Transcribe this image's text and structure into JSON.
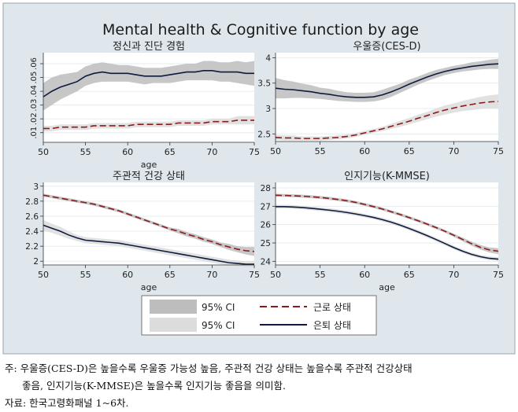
{
  "figure": {
    "title": "Mental health & Cognitive function by age",
    "colors": {
      "background": "#dfe7ec",
      "plot_bg": "#ffffff",
      "ci_dark": "#bdbdbd",
      "ci_light": "#dcdcdc",
      "working": "#8b1a1a",
      "retired": "#0d1b3e"
    }
  },
  "legend": {
    "ci_dark_label": "95% CI",
    "ci_light_label": "95% CI",
    "working_label": "근로 상태",
    "retired_label": "은퇴 상태"
  },
  "notes": {
    "line1": "주: 우울증(CES-D)은 높을수록 우울증 가능성 높음, 주관적 건강 상태는 높을수록 주관적 건강상태",
    "line2": "좋음, 인지기능(K-MMSE)은 높을수록 인지기능 좋음을 의미함.",
    "line3": "자료: 한국고령화패널 1~6차."
  },
  "chart_data": [
    {
      "type": "line",
      "title": "정신과 진단 경험",
      "xlabel": "age",
      "xlim": [
        50,
        75
      ],
      "ylim": [
        0.003,
        0.068
      ],
      "xticks": [
        "50",
        "55",
        "60",
        "65",
        "70",
        "75"
      ],
      "yticks": [
        0.01,
        0.02,
        0.03,
        0.04,
        0.05,
        0.06
      ],
      "ytick_labels": [
        ".01",
        ".02",
        ".03",
        ".04",
        ".05",
        ".06"
      ],
      "x": [
        50,
        51,
        52,
        53,
        54,
        55,
        56,
        57,
        58,
        59,
        60,
        61,
        62,
        63,
        64,
        65,
        66,
        67,
        68,
        69,
        70,
        71,
        72,
        73,
        74,
        75
      ],
      "series": [
        {
          "name": "은퇴 상태",
          "values": [
            0.036,
            0.04,
            0.043,
            0.045,
            0.047,
            0.051,
            0.053,
            0.054,
            0.053,
            0.053,
            0.053,
            0.052,
            0.051,
            0.051,
            0.051,
            0.052,
            0.053,
            0.054,
            0.054,
            0.055,
            0.055,
            0.054,
            0.054,
            0.054,
            0.053,
            0.053
          ],
          "ci_low": [
            0.026,
            0.03,
            0.034,
            0.037,
            0.04,
            0.044,
            0.046,
            0.047,
            0.047,
            0.047,
            0.047,
            0.046,
            0.045,
            0.046,
            0.046,
            0.046,
            0.047,
            0.048,
            0.048,
            0.048,
            0.048,
            0.047,
            0.047,
            0.046,
            0.045,
            0.044
          ],
          "ci_high": [
            0.046,
            0.05,
            0.052,
            0.053,
            0.054,
            0.058,
            0.06,
            0.061,
            0.06,
            0.059,
            0.059,
            0.058,
            0.057,
            0.057,
            0.057,
            0.058,
            0.059,
            0.06,
            0.06,
            0.062,
            0.062,
            0.061,
            0.061,
            0.062,
            0.061,
            0.062
          ]
        },
        {
          "name": "근로 상태",
          "values": [
            0.013,
            0.013,
            0.014,
            0.014,
            0.014,
            0.014,
            0.015,
            0.015,
            0.015,
            0.015,
            0.015,
            0.016,
            0.016,
            0.016,
            0.016,
            0.016,
            0.017,
            0.017,
            0.017,
            0.017,
            0.018,
            0.018,
            0.018,
            0.019,
            0.019,
            0.019
          ],
          "ci_low": [
            0.011,
            0.011,
            0.012,
            0.012,
            0.012,
            0.012,
            0.013,
            0.013,
            0.013,
            0.013,
            0.013,
            0.014,
            0.014,
            0.014,
            0.014,
            0.014,
            0.015,
            0.015,
            0.015,
            0.015,
            0.016,
            0.016,
            0.016,
            0.016,
            0.016,
            0.016
          ],
          "ci_high": [
            0.015,
            0.015,
            0.016,
            0.016,
            0.016,
            0.016,
            0.017,
            0.017,
            0.017,
            0.017,
            0.017,
            0.018,
            0.018,
            0.018,
            0.018,
            0.018,
            0.019,
            0.019,
            0.019,
            0.019,
            0.02,
            0.02,
            0.02,
            0.022,
            0.022,
            0.022
          ]
        }
      ]
    },
    {
      "type": "line",
      "title": "우울증(CES-D)",
      "xlabel": "",
      "xlim": [
        50,
        75
      ],
      "ylim": [
        2.35,
        4.1
      ],
      "xticks": [
        "50",
        "55",
        "60",
        "65",
        "70",
        "75"
      ],
      "yticks": [
        2.5,
        3,
        3.5,
        4
      ],
      "ytick_labels": [
        "2.5",
        "3",
        "3.5",
        "4"
      ],
      "x": [
        50,
        51,
        52,
        53,
        54,
        55,
        56,
        57,
        58,
        59,
        60,
        61,
        62,
        63,
        64,
        65,
        66,
        67,
        68,
        69,
        70,
        71,
        72,
        73,
        74,
        75
      ],
      "series": [
        {
          "name": "은퇴 상태",
          "values": [
            3.4,
            3.38,
            3.37,
            3.35,
            3.33,
            3.3,
            3.28,
            3.25,
            3.23,
            3.22,
            3.22,
            3.23,
            3.27,
            3.33,
            3.4,
            3.48,
            3.55,
            3.62,
            3.68,
            3.73,
            3.77,
            3.8,
            3.83,
            3.85,
            3.87,
            3.88
          ],
          "ci_low": [
            3.2,
            3.2,
            3.21,
            3.21,
            3.2,
            3.19,
            3.17,
            3.15,
            3.14,
            3.13,
            3.13,
            3.14,
            3.17,
            3.23,
            3.31,
            3.39,
            3.47,
            3.54,
            3.6,
            3.66,
            3.7,
            3.73,
            3.75,
            3.77,
            3.78,
            3.78
          ],
          "ci_high": [
            3.6,
            3.56,
            3.53,
            3.49,
            3.46,
            3.41,
            3.39,
            3.35,
            3.32,
            3.31,
            3.31,
            3.32,
            3.37,
            3.43,
            3.49,
            3.57,
            3.63,
            3.7,
            3.76,
            3.8,
            3.84,
            3.87,
            3.91,
            3.93,
            3.96,
            3.98
          ]
        },
        {
          "name": "근로 상태",
          "values": [
            2.43,
            2.42,
            2.42,
            2.41,
            2.41,
            2.41,
            2.42,
            2.43,
            2.45,
            2.48,
            2.52,
            2.56,
            2.6,
            2.65,
            2.7,
            2.75,
            2.81,
            2.86,
            2.92,
            2.97,
            3.01,
            3.05,
            3.08,
            3.11,
            3.13,
            3.14
          ],
          "ci_low": [
            2.38,
            2.37,
            2.37,
            2.37,
            2.37,
            2.37,
            2.38,
            2.39,
            2.41,
            2.44,
            2.48,
            2.52,
            2.56,
            2.6,
            2.64,
            2.69,
            2.74,
            2.79,
            2.84,
            2.88,
            2.92,
            2.95,
            2.97,
            2.99,
            3.0,
            3.0
          ],
          "ci_high": [
            2.48,
            2.47,
            2.47,
            2.45,
            2.45,
            2.45,
            2.46,
            2.47,
            2.49,
            2.52,
            2.56,
            2.6,
            2.64,
            2.7,
            2.76,
            2.81,
            2.88,
            2.93,
            3.0,
            3.06,
            3.1,
            3.15,
            3.19,
            3.23,
            3.26,
            3.28
          ]
        }
      ]
    },
    {
      "type": "line",
      "title": "주관적 건강 상태",
      "xlabel": "age",
      "xlim": [
        50,
        75
      ],
      "ylim": [
        1.95,
        3.05
      ],
      "xticks": [
        "50",
        "55",
        "60",
        "65",
        "70",
        "75"
      ],
      "yticks": [
        2,
        2.2,
        2.4,
        2.6,
        2.8,
        3
      ],
      "ytick_labels": [
        "2",
        "2.2",
        "2.4",
        "2.6",
        "2.8",
        "3"
      ],
      "x": [
        50,
        51,
        52,
        53,
        54,
        55,
        56,
        57,
        58,
        59,
        60,
        61,
        62,
        63,
        64,
        65,
        66,
        67,
        68,
        69,
        70,
        71,
        72,
        73,
        74,
        75
      ],
      "series": [
        {
          "name": "근로 상태",
          "values": [
            2.88,
            2.86,
            2.84,
            2.82,
            2.8,
            2.78,
            2.76,
            2.73,
            2.7,
            2.67,
            2.63,
            2.59,
            2.55,
            2.51,
            2.47,
            2.43,
            2.4,
            2.36,
            2.33,
            2.29,
            2.26,
            2.22,
            2.19,
            2.16,
            2.14,
            2.13
          ],
          "ci_low": [
            2.86,
            2.84,
            2.82,
            2.8,
            2.78,
            2.76,
            2.74,
            2.71,
            2.68,
            2.65,
            2.61,
            2.57,
            2.53,
            2.49,
            2.45,
            2.41,
            2.37,
            2.33,
            2.3,
            2.26,
            2.23,
            2.19,
            2.15,
            2.12,
            2.09,
            2.07
          ],
          "ci_high": [
            2.9,
            2.88,
            2.86,
            2.84,
            2.82,
            2.8,
            2.78,
            2.75,
            2.72,
            2.69,
            2.65,
            2.61,
            2.57,
            2.53,
            2.49,
            2.45,
            2.43,
            2.39,
            2.36,
            2.32,
            2.29,
            2.25,
            2.23,
            2.2,
            2.19,
            2.19
          ]
        },
        {
          "name": "은퇴 상태",
          "values": [
            2.48,
            2.44,
            2.4,
            2.35,
            2.31,
            2.28,
            2.27,
            2.26,
            2.25,
            2.24,
            2.22,
            2.2,
            2.18,
            2.16,
            2.14,
            2.12,
            2.1,
            2.08,
            2.06,
            2.04,
            2.02,
            2.0,
            1.98,
            1.97,
            1.96,
            1.96
          ],
          "ci_low": [
            2.41,
            2.38,
            2.34,
            2.3,
            2.27,
            2.24,
            2.23,
            2.22,
            2.21,
            2.2,
            2.18,
            2.16,
            2.14,
            2.12,
            2.1,
            2.08,
            2.06,
            2.04,
            2.02,
            2.0,
            1.98,
            1.96,
            1.94,
            1.93,
            1.92,
            1.92
          ],
          "ci_high": [
            2.55,
            2.5,
            2.46,
            2.4,
            2.35,
            2.32,
            2.31,
            2.3,
            2.29,
            2.28,
            2.26,
            2.24,
            2.22,
            2.2,
            2.18,
            2.16,
            2.14,
            2.12,
            2.1,
            2.08,
            2.06,
            2.04,
            2.02,
            2.01,
            2.0,
            2.0
          ]
        }
      ]
    },
    {
      "type": "line",
      "title": "인지기능(K-MMSE)",
      "xlabel": "age",
      "xlim": [
        50,
        75
      ],
      "ylim": [
        23.8,
        28.3
      ],
      "xticks": [
        "50",
        "55",
        "60",
        "65",
        "70",
        "75"
      ],
      "yticks": [
        24,
        25,
        26,
        27,
        28
      ],
      "ytick_labels": [
        "24",
        "25",
        "26",
        "27",
        "28"
      ],
      "x": [
        50,
        51,
        52,
        53,
        54,
        55,
        56,
        57,
        58,
        59,
        60,
        61,
        62,
        63,
        64,
        65,
        66,
        67,
        68,
        69,
        70,
        71,
        72,
        73,
        74,
        75
      ],
      "series": [
        {
          "name": "근로 상태",
          "values": [
            27.6,
            27.59,
            27.57,
            27.55,
            27.52,
            27.48,
            27.43,
            27.37,
            27.3,
            27.21,
            27.1,
            26.98,
            26.85,
            26.7,
            26.55,
            26.38,
            26.21,
            26.03,
            25.84,
            25.64,
            25.42,
            25.19,
            24.96,
            24.76,
            24.62,
            24.55
          ],
          "ci_low": [
            27.52,
            27.51,
            27.49,
            27.47,
            27.44,
            27.4,
            27.35,
            27.29,
            27.22,
            27.13,
            27.02,
            26.9,
            26.77,
            26.62,
            26.47,
            26.3,
            26.13,
            25.95,
            25.76,
            25.56,
            25.33,
            25.09,
            24.85,
            24.64,
            24.48,
            24.39
          ],
          "ci_high": [
            27.68,
            27.67,
            27.65,
            27.63,
            27.6,
            27.56,
            27.51,
            27.45,
            27.38,
            27.29,
            27.18,
            27.06,
            26.93,
            26.78,
            26.63,
            26.46,
            26.29,
            26.11,
            25.92,
            25.72,
            25.51,
            25.29,
            25.07,
            24.88,
            24.76,
            24.71
          ]
        },
        {
          "name": "은퇴 상태",
          "values": [
            26.98,
            26.98,
            26.96,
            26.93,
            26.89,
            26.84,
            26.79,
            26.73,
            26.66,
            26.58,
            26.49,
            26.39,
            26.27,
            26.13,
            25.97,
            25.79,
            25.6,
            25.4,
            25.19,
            24.97,
            24.75,
            24.55,
            24.38,
            24.25,
            24.16,
            24.12
          ],
          "ci_low": [
            26.88,
            26.88,
            26.86,
            26.83,
            26.79,
            26.74,
            26.69,
            26.63,
            26.56,
            26.48,
            26.39,
            26.29,
            26.17,
            26.03,
            25.87,
            25.69,
            25.5,
            25.3,
            25.09,
            24.87,
            24.65,
            24.45,
            24.28,
            24.15,
            24.06,
            24.02
          ],
          "ci_high": [
            27.08,
            27.08,
            27.06,
            27.03,
            26.99,
            26.94,
            26.89,
            26.83,
            26.76,
            26.68,
            26.59,
            26.49,
            26.37,
            26.23,
            26.07,
            25.89,
            25.7,
            25.5,
            25.29,
            25.07,
            24.85,
            24.65,
            24.48,
            24.35,
            24.26,
            24.22
          ]
        }
      ]
    }
  ]
}
